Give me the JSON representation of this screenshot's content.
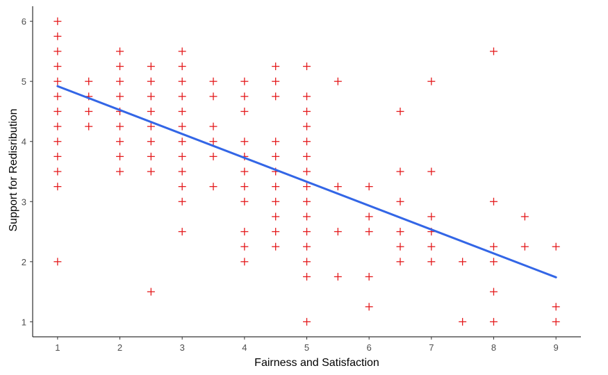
{
  "chart_data": {
    "type": "scatter",
    "title": "",
    "xlabel": "Fairness and Satisfaction",
    "ylabel": "Support for Redisribution",
    "xlim": [
      0.6,
      9.4
    ],
    "ylim": [
      0.75,
      6.25
    ],
    "x_ticks": [
      1,
      2,
      3,
      4,
      5,
      6,
      7,
      8,
      9
    ],
    "y_ticks": [
      1,
      2,
      3,
      4,
      5,
      6
    ],
    "grid": false,
    "marker": "plus",
    "point_color": "#e41a1c",
    "line_color": "#3366e6",
    "points": [
      [
        1,
        6
      ],
      [
        1,
        5.75
      ],
      [
        1,
        5.5
      ],
      [
        1,
        5.25
      ],
      [
        1,
        5
      ],
      [
        1,
        4.75
      ],
      [
        1,
        4.5
      ],
      [
        1,
        4.25
      ],
      [
        1,
        4
      ],
      [
        1,
        3.75
      ],
      [
        1,
        3.5
      ],
      [
        1,
        3.25
      ],
      [
        1,
        2
      ],
      [
        1.5,
        5
      ],
      [
        1.5,
        4.75
      ],
      [
        1.5,
        4.5
      ],
      [
        1.5,
        4.25
      ],
      [
        2,
        5.5
      ],
      [
        2,
        5.25
      ],
      [
        2,
        5
      ],
      [
        2,
        4.75
      ],
      [
        2,
        4.5
      ],
      [
        2,
        4.25
      ],
      [
        2,
        4
      ],
      [
        2,
        3.75
      ],
      [
        2,
        3.5
      ],
      [
        2.5,
        5.25
      ],
      [
        2.5,
        5
      ],
      [
        2.5,
        4.75
      ],
      [
        2.5,
        4.5
      ],
      [
        2.5,
        4.25
      ],
      [
        2.5,
        4
      ],
      [
        2.5,
        3.75
      ],
      [
        2.5,
        3.5
      ],
      [
        2.5,
        1.5
      ],
      [
        3,
        5.5
      ],
      [
        3,
        5.25
      ],
      [
        3,
        5
      ],
      [
        3,
        4.75
      ],
      [
        3,
        4.5
      ],
      [
        3,
        4.25
      ],
      [
        3,
        4
      ],
      [
        3,
        3.75
      ],
      [
        3,
        3.5
      ],
      [
        3,
        3.25
      ],
      [
        3,
        3
      ],
      [
        3,
        2.5
      ],
      [
        3.5,
        5
      ],
      [
        3.5,
        4.75
      ],
      [
        3.5,
        4.25
      ],
      [
        3.5,
        4
      ],
      [
        3.5,
        3.75
      ],
      [
        3.5,
        3.25
      ],
      [
        4,
        5
      ],
      [
        4,
        4.75
      ],
      [
        4,
        4.5
      ],
      [
        4,
        4
      ],
      [
        4,
        3.75
      ],
      [
        4,
        3.5
      ],
      [
        4,
        3.25
      ],
      [
        4,
        3
      ],
      [
        4,
        2.5
      ],
      [
        4,
        2.25
      ],
      [
        4,
        2
      ],
      [
        4.5,
        5.25
      ],
      [
        4.5,
        5
      ],
      [
        4.5,
        4.75
      ],
      [
        4.5,
        4
      ],
      [
        4.5,
        3.75
      ],
      [
        4.5,
        3.5
      ],
      [
        4.5,
        3.25
      ],
      [
        4.5,
        3
      ],
      [
        4.5,
        2.75
      ],
      [
        4.5,
        2.5
      ],
      [
        4.5,
        2.25
      ],
      [
        5,
        5.25
      ],
      [
        5,
        4.75
      ],
      [
        5,
        4.5
      ],
      [
        5,
        4.25
      ],
      [
        5,
        4
      ],
      [
        5,
        3.75
      ],
      [
        5,
        3.5
      ],
      [
        5,
        3.25
      ],
      [
        5,
        3
      ],
      [
        5,
        2.75
      ],
      [
        5,
        2.5
      ],
      [
        5,
        2.25
      ],
      [
        5,
        2
      ],
      [
        5,
        1.75
      ],
      [
        5,
        1
      ],
      [
        5.5,
        5
      ],
      [
        5.5,
        3.25
      ],
      [
        5.5,
        2.5
      ],
      [
        5.5,
        1.75
      ],
      [
        6,
        3.25
      ],
      [
        6,
        2.75
      ],
      [
        6,
        2.5
      ],
      [
        6,
        1.75
      ],
      [
        6,
        1.25
      ],
      [
        6.5,
        4.5
      ],
      [
        6.5,
        3.5
      ],
      [
        6.5,
        3
      ],
      [
        6.5,
        2.5
      ],
      [
        6.5,
        2.25
      ],
      [
        6.5,
        2
      ],
      [
        7,
        5
      ],
      [
        7,
        3.5
      ],
      [
        7,
        2.75
      ],
      [
        7,
        2.5
      ],
      [
        7,
        2.25
      ],
      [
        7,
        2
      ],
      [
        7.5,
        2
      ],
      [
        7.5,
        1
      ],
      [
        8,
        5.5
      ],
      [
        8,
        3
      ],
      [
        8,
        2.25
      ],
      [
        8,
        2
      ],
      [
        8,
        1.5
      ],
      [
        8,
        1
      ],
      [
        8.5,
        2.75
      ],
      [
        8.5,
        2.25
      ],
      [
        9,
        2.25
      ],
      [
        9,
        1.25
      ],
      [
        9,
        1
      ]
    ],
    "trend_line": {
      "x": [
        1,
        9
      ],
      "y": [
        4.92,
        1.74
      ]
    }
  }
}
